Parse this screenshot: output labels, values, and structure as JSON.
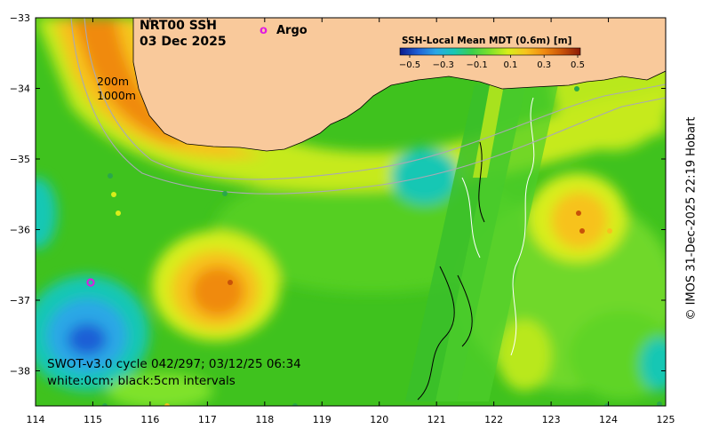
{
  "title": {
    "line1": "NRT00 SSH",
    "line2": "03 Dec 2025"
  },
  "legend": {
    "argo_marker": "o",
    "argo_label": "Argo"
  },
  "colorbar": {
    "title": "SSH-Local Mean MDT (0.6m) [m]",
    "tick_labels": [
      "−0.5",
      "−0.3",
      "−0.1",
      "0.1",
      "0.3",
      "0.5"
    ],
    "colors": [
      "#0a1a8c",
      "#1f5fd6",
      "#2aa7e6",
      "#19c7b4",
      "#3ccf4a",
      "#7fe22a",
      "#d8ee1a",
      "#f7c21e",
      "#f08a10",
      "#c85208",
      "#8c1a08"
    ]
  },
  "axes": {
    "x_ticks": [
      "114",
      "115",
      "116",
      "117",
      "118",
      "119",
      "120",
      "121",
      "122",
      "123",
      "124",
      "125"
    ],
    "y_ticks": [
      "−33",
      "−34",
      "−35",
      "−36",
      "−37",
      "−38"
    ]
  },
  "depth_labels": {
    "shallow": "200m",
    "deep": "1000m"
  },
  "swot_info": {
    "line1": "SWOT-v3.0 cycle 042/297; 03/12/25 06:34",
    "line2": "white:0cm; black:5cm intervals"
  },
  "credit": "© IMOS 31-Dec-2025 22:19 Hobart",
  "colors": {
    "land": "#f9c99b",
    "background": "#4fc81f",
    "argo": "#e01be0"
  }
}
